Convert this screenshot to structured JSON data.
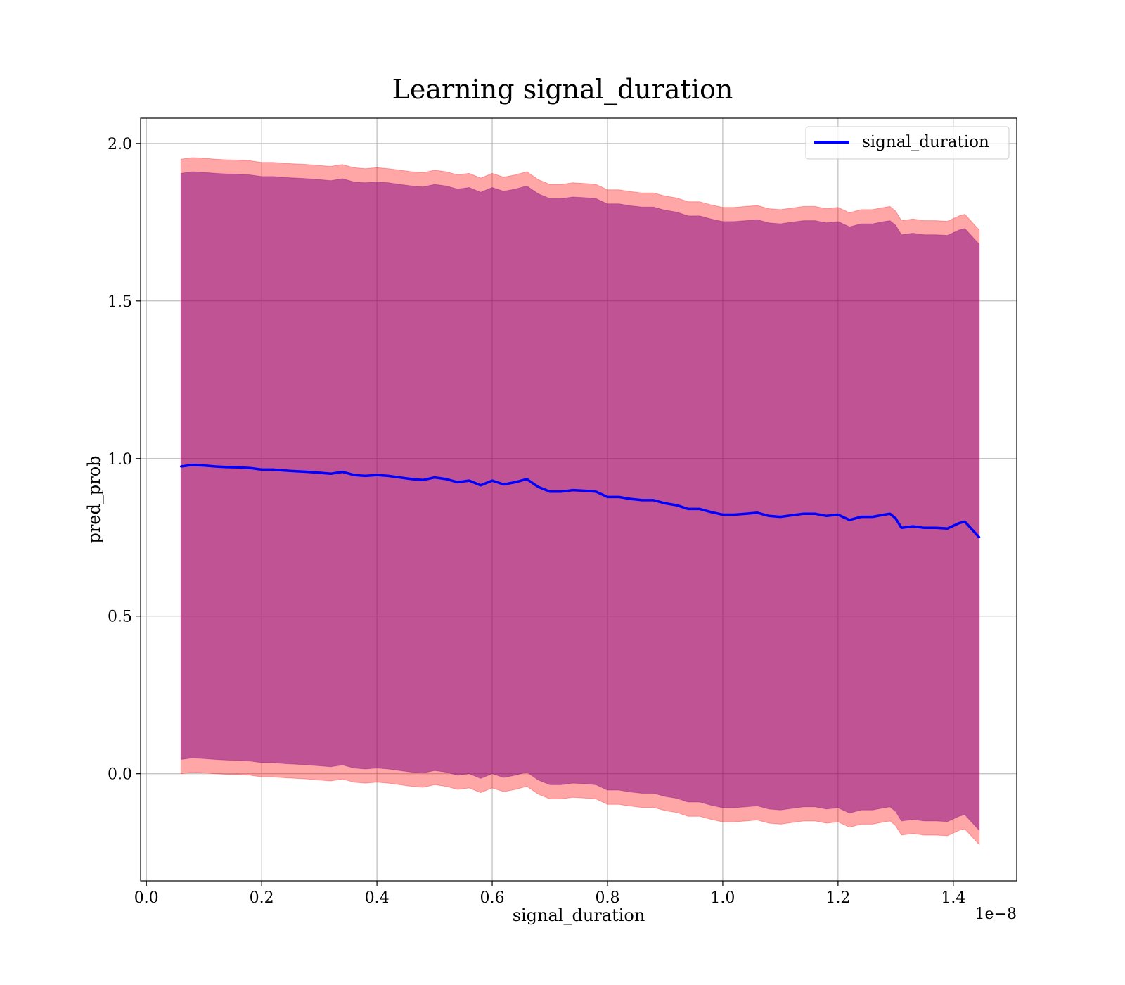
{
  "chart_data": {
    "type": "line",
    "title": "Learning signal_duration",
    "xlabel": "signal_duration",
    "ylabel": "pred_prob",
    "x_offset_text": "1e−8",
    "xlim": [
      -0.01,
      1.51
    ],
    "ylim": [
      -0.34,
      2.08
    ],
    "x_ticks": [
      0.0,
      0.2,
      0.4,
      0.6,
      0.8,
      1.0,
      1.2,
      1.4
    ],
    "x_tick_labels": [
      "0.0",
      "0.2",
      "0.4",
      "0.6",
      "0.8",
      "1.0",
      "1.2",
      "1.4"
    ],
    "y_ticks": [
      0.0,
      0.5,
      1.0,
      1.5,
      2.0
    ],
    "y_tick_labels": [
      "0.0",
      "0.5",
      "1.0",
      "1.5",
      "2.0"
    ],
    "grid": true,
    "legend_position": "top-right",
    "colors": {
      "line": "#0000ff",
      "outer_band": "#ff0000",
      "inner_band": "#800080",
      "grid": "#b0b0b0",
      "frame": "#000000"
    },
    "series": [
      {
        "name": "signal_duration",
        "x": [
          0.06,
          0.08,
          0.1,
          0.12,
          0.14,
          0.16,
          0.18,
          0.2,
          0.22,
          0.24,
          0.26,
          0.28,
          0.3,
          0.32,
          0.34,
          0.36,
          0.38,
          0.4,
          0.42,
          0.44,
          0.46,
          0.48,
          0.5,
          0.52,
          0.54,
          0.56,
          0.58,
          0.6,
          0.62,
          0.64,
          0.66,
          0.68,
          0.7,
          0.72,
          0.74,
          0.76,
          0.78,
          0.8,
          0.82,
          0.84,
          0.86,
          0.88,
          0.9,
          0.92,
          0.94,
          0.96,
          0.98,
          1.0,
          1.02,
          1.04,
          1.06,
          1.08,
          1.1,
          1.12,
          1.14,
          1.16,
          1.18,
          1.2,
          1.22,
          1.24,
          1.26,
          1.28,
          1.29,
          1.3,
          1.31,
          1.33,
          1.35,
          1.37,
          1.39,
          1.41,
          1.42,
          1.445
        ],
        "y": [
          0.975,
          0.98,
          0.978,
          0.975,
          0.973,
          0.972,
          0.97,
          0.965,
          0.965,
          0.962,
          0.96,
          0.958,
          0.955,
          0.952,
          0.958,
          0.948,
          0.945,
          0.948,
          0.945,
          0.94,
          0.935,
          0.932,
          0.94,
          0.935,
          0.925,
          0.93,
          0.915,
          0.93,
          0.918,
          0.925,
          0.935,
          0.91,
          0.895,
          0.895,
          0.9,
          0.898,
          0.895,
          0.878,
          0.878,
          0.872,
          0.868,
          0.868,
          0.858,
          0.852,
          0.84,
          0.84,
          0.83,
          0.822,
          0.822,
          0.825,
          0.828,
          0.818,
          0.815,
          0.82,
          0.825,
          0.825,
          0.818,
          0.822,
          0.805,
          0.815,
          0.815,
          0.822,
          0.825,
          0.81,
          0.78,
          0.785,
          0.78,
          0.78,
          0.778,
          0.795,
          0.8,
          0.75
        ],
        "outer_band_half_width": 0.975,
        "inner_band_half_width": 0.93
      }
    ]
  }
}
